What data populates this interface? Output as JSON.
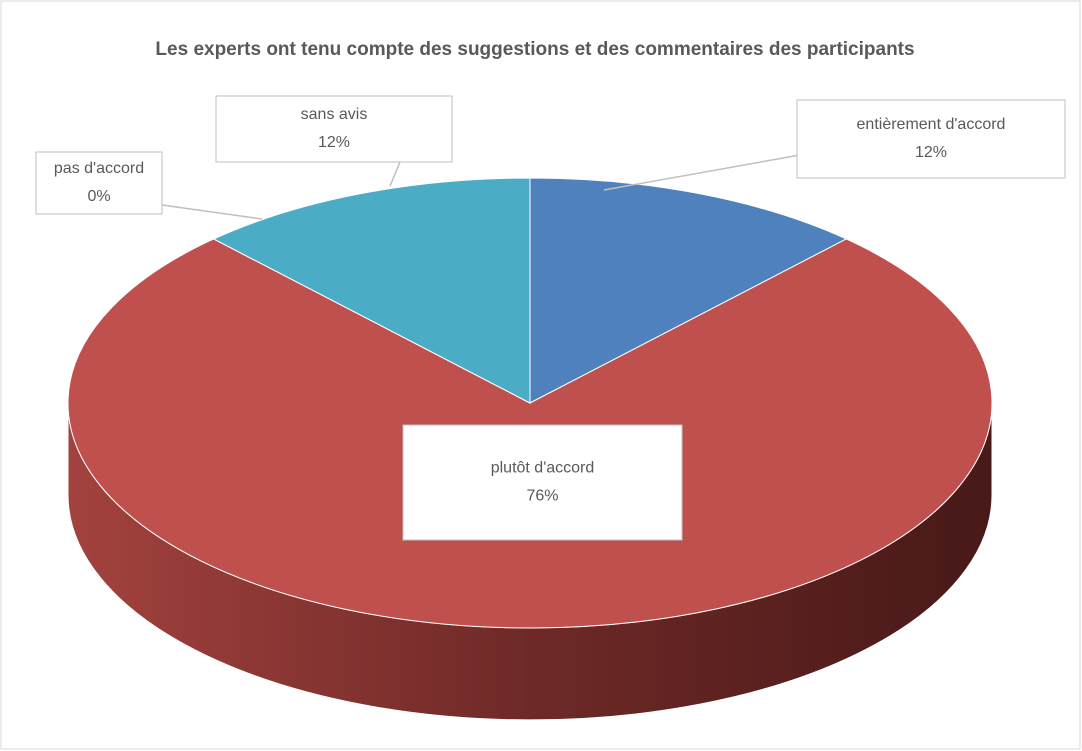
{
  "chart_data": {
    "type": "pie3d",
    "title": "Les experts ont tenu compte des suggestions et des commentaires des participants",
    "categories": [
      "entièrement d'accord",
      "plutôt d'accord",
      "pas d'accord",
      "sans avis"
    ],
    "values": [
      12,
      76,
      0,
      12
    ],
    "value_labels": [
      "12%",
      "76%",
      "0%",
      "12%"
    ],
    "colors": [
      "#4f81bd",
      "#c0504d",
      "#9bbb59",
      "#4bacc6"
    ]
  }
}
